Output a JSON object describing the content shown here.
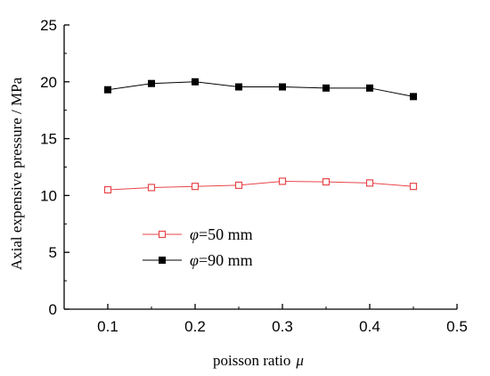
{
  "chart_data": {
    "type": "line",
    "xlabel": "poisson ratio",
    "xlabel_symbol": "μ",
    "ylabel": "Axial expensive pressure / MPa",
    "xlim": [
      0.05,
      0.5
    ],
    "ylim": [
      0,
      25
    ],
    "x_ticks": [
      "0.1",
      "0.2",
      "0.3",
      "0.4",
      "0.5"
    ],
    "y_ticks": [
      "0",
      "5",
      "10",
      "15",
      "20",
      "25"
    ],
    "legend_placement": "lower-left",
    "grid": false,
    "x": [
      0.1,
      0.15,
      0.2,
      0.25,
      0.3,
      0.35,
      0.4,
      0.45
    ],
    "series": [
      {
        "name": "=50 mm",
        "symbol": "φ",
        "values": [
          10.5,
          10.7,
          10.8,
          10.9,
          11.25,
          11.2,
          11.1,
          10.8
        ],
        "color": "#e8464a",
        "marker": "open-square"
      },
      {
        "name": "=90 mm",
        "symbol": "φ",
        "values": [
          19.3,
          19.85,
          20.0,
          19.55,
          19.55,
          19.45,
          19.45,
          18.7
        ],
        "color": "#000000",
        "marker": "filled-square"
      }
    ]
  }
}
